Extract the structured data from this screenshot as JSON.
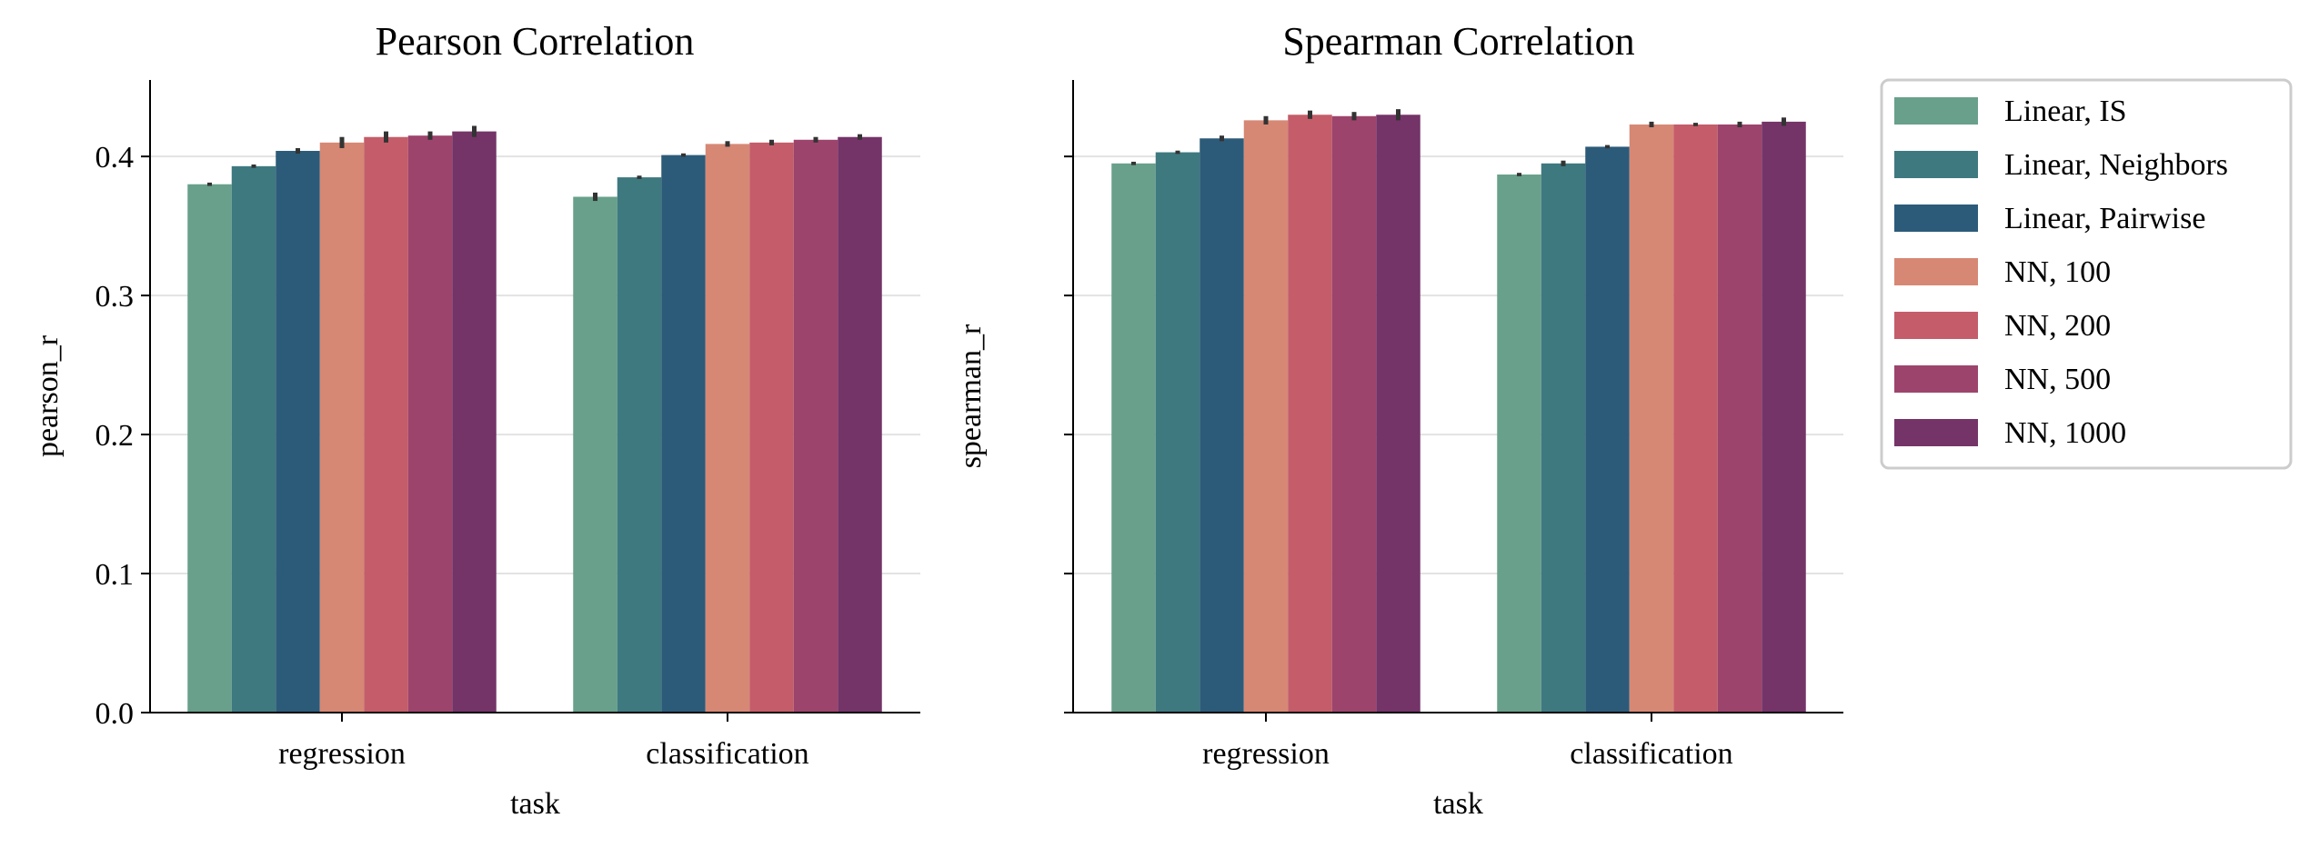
{
  "chart_data": [
    {
      "type": "bar",
      "title": "Pearson Correlation",
      "xlabel": "task",
      "ylabel": "pearson_r",
      "categories": [
        "regression",
        "classification"
      ],
      "ylim": [
        0,
        0.455
      ],
      "yticks": [
        0.0,
        0.1,
        0.2,
        0.3,
        0.4
      ],
      "ytick_labels": [
        "0.0",
        "0.1",
        "0.2",
        "0.3",
        "0.4"
      ],
      "grid": "horizontal",
      "series": [
        {
          "name": "Linear, IS",
          "values": [
            0.38,
            0.371
          ],
          "error": [
            0.0,
            0.003
          ]
        },
        {
          "name": "Linear, Neighbors",
          "values": [
            0.393,
            0.385
          ],
          "error": [
            0.0,
            0.0
          ]
        },
        {
          "name": "Linear, Pairwise",
          "values": [
            0.404,
            0.401
          ],
          "error": [
            0.002,
            0.0
          ]
        },
        {
          "name": "NN, 100",
          "values": [
            0.41,
            0.409
          ],
          "error": [
            0.004,
            0.002
          ]
        },
        {
          "name": "NN, 200",
          "values": [
            0.414,
            0.41
          ],
          "error": [
            0.004,
            0.002
          ]
        },
        {
          "name": "NN, 500",
          "values": [
            0.415,
            0.412
          ],
          "error": [
            0.003,
            0.002
          ]
        },
        {
          "name": "NN, 1000",
          "values": [
            0.418,
            0.414
          ],
          "error": [
            0.004,
            0.002
          ]
        }
      ]
    },
    {
      "type": "bar",
      "title": "Spearman Correlation",
      "xlabel": "task",
      "ylabel": "spearman_r",
      "categories": [
        "regression",
        "classification"
      ],
      "ylim": [
        0,
        0.455
      ],
      "yticks": [
        0.0,
        0.1,
        0.2,
        0.3,
        0.4
      ],
      "ytick_labels": [
        "",
        "",
        "",
        "",
        ""
      ],
      "grid": "horizontal",
      "series": [
        {
          "name": "Linear, IS",
          "values": [
            0.395,
            0.387
          ],
          "error": [
            0.0,
            0.0
          ]
        },
        {
          "name": "Linear, Neighbors",
          "values": [
            0.403,
            0.395
          ],
          "error": [
            0.0,
            0.002
          ]
        },
        {
          "name": "Linear, Pairwise",
          "values": [
            0.413,
            0.407
          ],
          "error": [
            0.002,
            0.0
          ]
        },
        {
          "name": "NN, 100",
          "values": [
            0.426,
            0.423
          ],
          "error": [
            0.003,
            0.002
          ]
        },
        {
          "name": "NN, 200",
          "values": [
            0.43,
            0.423
          ],
          "error": [
            0.003,
            0.0
          ]
        },
        {
          "name": "NN, 500",
          "values": [
            0.429,
            0.423
          ],
          "error": [
            0.003,
            0.002
          ]
        },
        {
          "name": "NN, 1000",
          "values": [
            0.43,
            0.425
          ],
          "error": [
            0.004,
            0.003
          ]
        }
      ]
    }
  ],
  "legend": {
    "position": "upper right (outside)",
    "entries": [
      {
        "label": "Linear, IS",
        "color": "#68a08b"
      },
      {
        "label": "Linear, Neighbors",
        "color": "#3e7980"
      },
      {
        "label": "Linear, Pairwise",
        "color": "#2c5b79"
      },
      {
        "label": "NN, 100",
        "color": "#d68875"
      },
      {
        "label": "NN, 200",
        "color": "#c45d69"
      },
      {
        "label": "NN, 500",
        "color": "#9d446c"
      },
      {
        "label": "NN, 1000",
        "color": "#743468"
      }
    ]
  },
  "colors": {
    "grid": "#e3e3e3",
    "axis": "#000000",
    "error_bar": "#333333"
  }
}
